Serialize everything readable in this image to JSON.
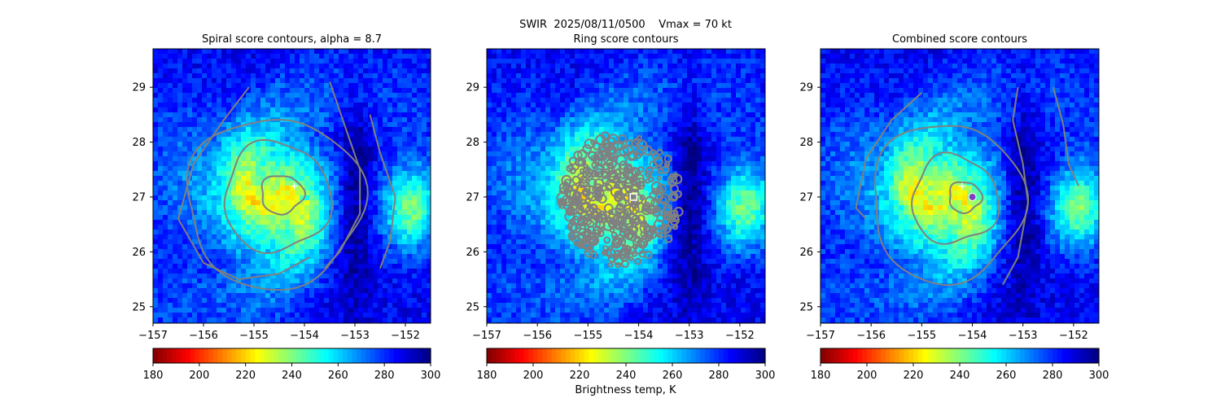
{
  "figure": {
    "suptitle": "SWIR  2025/08/11/0500    Vmax = 70 kt",
    "colorbar_label": "Brightness temp, K"
  },
  "colors": {
    "contour": "#808080",
    "jet_reversed_cmap": [
      "#800000",
      "#ff0000",
      "#ff8000",
      "#ffff00",
      "#80ff80",
      "#00ffff",
      "#0080ff",
      "#0000ff",
      "#000080"
    ]
  },
  "chart_data": [
    {
      "type": "heatmap",
      "title": "Spiral score contours, alpha =  8.7",
      "x_ticks": [
        -157,
        -156,
        -155,
        -154,
        -153,
        -152
      ],
      "y_ticks": [
        25,
        26,
        27,
        28,
        29
      ],
      "xlim": [
        -157.0,
        -151.5
      ],
      "ylim": [
        24.7,
        29.7
      ],
      "colorbar": {
        "ticks": [
          180,
          200,
          220,
          240,
          260,
          280,
          300
        ],
        "range": [
          180,
          300
        ],
        "cmap": "jet_r"
      },
      "markers": [
        {
          "symbol": "plus",
          "color": "#ffffff",
          "lon": -154.2,
          "lat": 27.2
        }
      ],
      "overlay": "spiral score contours",
      "grid": false
    },
    {
      "type": "heatmap",
      "title": "Ring score contours",
      "x_ticks": [
        -157,
        -156,
        -155,
        -154,
        -153,
        -152
      ],
      "y_ticks": [
        25,
        26,
        27,
        28,
        29
      ],
      "xlim": [
        -157.0,
        -151.5
      ],
      "ylim": [
        24.7,
        29.7
      ],
      "colorbar": {
        "ticks": [
          180,
          200,
          220,
          240,
          260,
          280,
          300
        ],
        "range": [
          180,
          300
        ],
        "cmap": "jet_r"
      },
      "markers": [
        {
          "symbol": "square",
          "color": "#ffffff",
          "lon": -154.1,
          "lat": 27.0
        }
      ],
      "overlay": "ring score contours",
      "grid": false
    },
    {
      "type": "heatmap",
      "title": "Combined score contours",
      "x_ticks": [
        -157,
        -156,
        -155,
        -154,
        -153,
        -152
      ],
      "y_ticks": [
        25,
        26,
        27,
        28,
        29
      ],
      "xlim": [
        -157.0,
        -151.5
      ],
      "ylim": [
        24.7,
        29.7
      ],
      "colorbar": {
        "ticks": [
          180,
          200,
          220,
          240,
          260,
          280,
          300
        ],
        "range": [
          180,
          300
        ],
        "cmap": "jet_r"
      },
      "markers": [
        {
          "symbol": "plus",
          "color": "#ffffff",
          "lon": -154.2,
          "lat": 27.2
        },
        {
          "symbol": "circle",
          "color": "#8040c0",
          "lon": -154.0,
          "lat": 27.0
        }
      ],
      "overlay": "combined score contours",
      "grid": false
    }
  ]
}
